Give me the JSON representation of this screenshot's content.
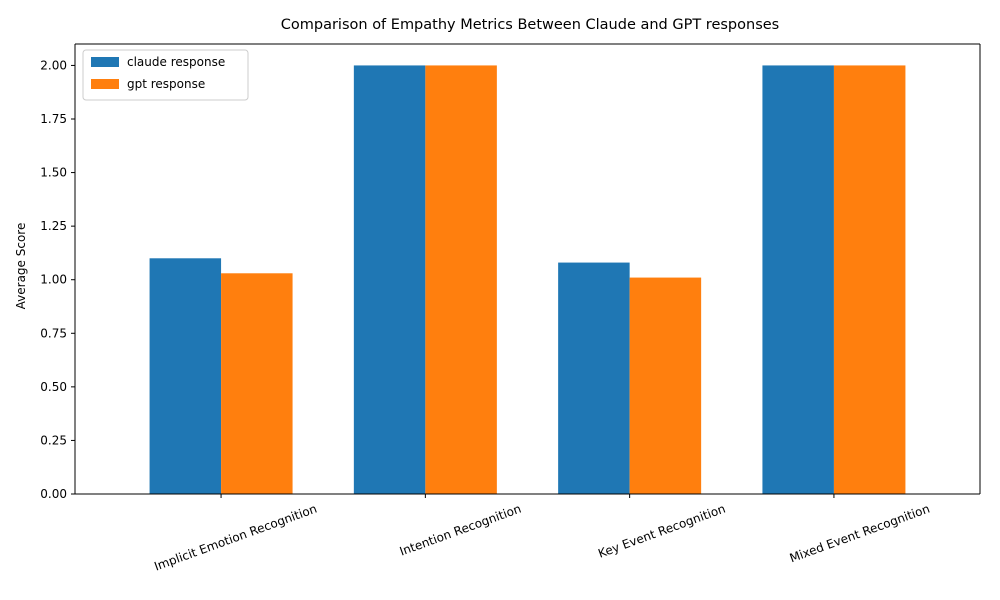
{
  "chart_data": {
    "type": "bar",
    "title": "Comparison of Empathy Metrics Between Claude and GPT responses",
    "xlabel": "",
    "ylabel": "Average Score",
    "categories": [
      "Implicit Emotion Recognition",
      "Intention Recognition",
      "Key Event Recognition",
      "Mixed Event Recognition"
    ],
    "series": [
      {
        "name": "claude response",
        "color": "#1f77b4",
        "values": [
          1.1,
          2.0,
          1.08,
          2.0
        ]
      },
      {
        "name": "gpt response",
        "color": "#ff7f0e",
        "values": [
          1.03,
          2.0,
          1.01,
          2.0
        ]
      }
    ],
    "ylim": [
      0,
      2.1
    ],
    "yticks": [
      "0.00",
      "0.25",
      "0.50",
      "0.75",
      "1.00",
      "1.25",
      "1.50",
      "1.75",
      "2.00"
    ],
    "grid": false,
    "legend_position": "top-left"
  }
}
